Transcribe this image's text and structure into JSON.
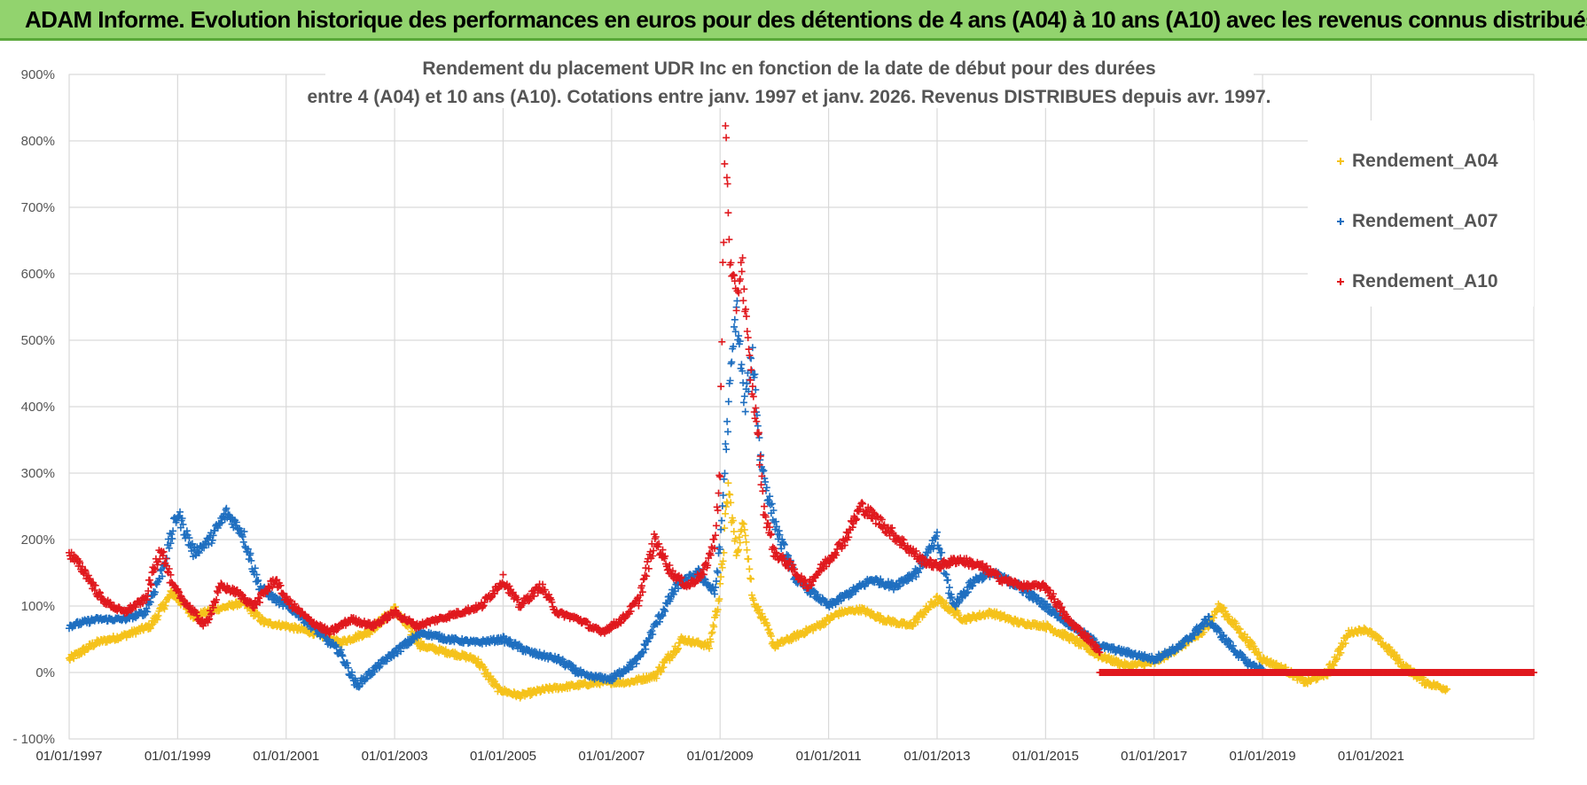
{
  "header": {
    "banner_title": "ADAM Informe. Evolution historique des performances en euros pour des détentions de 4 ans (A04) à 10 ans (A10) avec les revenus connus distribués"
  },
  "chart_data": {
    "type": "scatter",
    "title_line1": "Rendement du placement UDR Inc en fonction de la date de début pour des durées",
    "title_line2": "entre 4 (A04) et 10 ans (A10).  Cotations entre janv. 1997 et janv. 2026. Revenus DISTRIBUES depuis avr. 1997.",
    "xlabel": "",
    "ylabel": "",
    "x_range": [
      1997.0,
      2024.0
    ],
    "y_range": [
      -100,
      900
    ],
    "y_ticks": [
      -100,
      0,
      100,
      200,
      300,
      400,
      500,
      600,
      700,
      800,
      900
    ],
    "y_tick_labels": [
      "- 100%",
      "0%",
      "100%",
      "200%",
      "300%",
      "400%",
      "500%",
      "600%",
      "700%",
      "800%",
      "900%"
    ],
    "x_ticks": [
      1997,
      1999,
      2001,
      2003,
      2005,
      2007,
      2009,
      2011,
      2013,
      2015,
      2017,
      2019,
      2021
    ],
    "x_tick_labels": [
      "01/01/1997",
      "01/01/1999",
      "01/01/2001",
      "01/01/2003",
      "01/01/2005",
      "01/01/2007",
      "01/01/2009",
      "01/01/2011",
      "01/01/2013",
      "01/01/2015",
      "01/01/2017",
      "01/01/2019",
      "01/01/2021"
    ],
    "grid": true,
    "legend_position": "top-right",
    "marker": "+",
    "series": [
      {
        "name": "Rendement_A04",
        "color": "#f5c21b",
        "x": [
          1997.0,
          1997.5,
          1998.0,
          1998.5,
          1998.9,
          1999.3,
          1999.7,
          2000.2,
          2000.6,
          2001.0,
          2001.5,
          2002.0,
          2002.5,
          2003.0,
          2003.5,
          2004.0,
          2004.5,
          2004.9,
          2005.3,
          2005.8,
          2006.3,
          2006.8,
          2007.3,
          2007.8,
          2008.3,
          2008.8,
          2009.0,
          2009.15,
          2009.3,
          2009.45,
          2009.6,
          2009.8,
          2010.0,
          2010.4,
          2010.8,
          2011.2,
          2011.6,
          2012.0,
          2012.5,
          2013.0,
          2013.5,
          2014.0,
          2014.5,
          2015.0,
          2015.5,
          2016.0,
          2016.5,
          2017.0,
          2017.5,
          2017.9,
          2018.2,
          2018.6,
          2019.0,
          2019.4,
          2019.8,
          2020.2,
          2020.6,
          2020.9,
          2021.2,
          2021.6,
          2022.0,
          2022.4
        ],
        "y": [
          20,
          45,
          55,
          70,
          120,
          85,
          95,
          105,
          75,
          70,
          60,
          45,
          60,
          95,
          40,
          30,
          20,
          -25,
          -35,
          -25,
          -20,
          -15,
          -15,
          -5,
          50,
          40,
          120,
          280,
          180,
          230,
          110,
          80,
          40,
          55,
          70,
          90,
          95,
          80,
          70,
          110,
          80,
          90,
          75,
          70,
          50,
          25,
          10,
          15,
          40,
          60,
          100,
          60,
          20,
          5,
          -15,
          0,
          60,
          65,
          45,
          10,
          -15,
          -25
        ]
      },
      {
        "name": "Rendement_A07",
        "color": "#1f6fc0",
        "x": [
          1997.0,
          1997.5,
          1998.0,
          1998.4,
          1998.7,
          1999.0,
          1999.3,
          1999.6,
          1999.9,
          2000.2,
          2000.5,
          2000.8,
          2001.2,
          2001.6,
          2002.0,
          2002.3,
          2002.7,
          2003.0,
          2003.5,
          2004.0,
          2004.5,
          2005.0,
          2005.5,
          2006.0,
          2006.5,
          2007.0,
          2007.5,
          2007.8,
          2008.2,
          2008.6,
          2008.9,
          2009.0,
          2009.1,
          2009.2,
          2009.3,
          2009.45,
          2009.6,
          2009.75,
          2009.9,
          2010.1,
          2010.4,
          2010.7,
          2011.0,
          2011.4,
          2011.8,
          2012.2,
          2012.6,
          2013.0,
          2013.3,
          2013.7,
          2014.0,
          2014.5,
          2015.0,
          2015.5,
          2016.0,
          2016.5,
          2017.0,
          2017.5,
          2018.0,
          2018.3,
          2018.7,
          2019.0
        ],
        "y": [
          70,
          80,
          80,
          90,
          150,
          240,
          180,
          200,
          240,
          210,
          130,
          110,
          90,
          60,
          30,
          -20,
          10,
          30,
          60,
          50,
          45,
          50,
          30,
          20,
          -5,
          -10,
          20,
          70,
          130,
          150,
          120,
          190,
          330,
          450,
          550,
          400,
          480,
          320,
          260,
          200,
          140,
          120,
          100,
          120,
          140,
          130,
          150,
          200,
          100,
          140,
          150,
          130,
          100,
          70,
          40,
          30,
          20,
          40,
          80,
          50,
          15,
          5
        ]
      },
      {
        "name": "Rendement_A10",
        "color": "#e0191e",
        "x": [
          1997.0,
          1997.3,
          1997.6,
          1998.0,
          1998.4,
          1998.7,
          1998.9,
          1999.2,
          1999.5,
          1999.8,
          2000.1,
          2000.4,
          2000.8,
          2001.0,
          2001.4,
          2001.8,
          2002.2,
          2002.6,
          2003.0,
          2003.4,
          2003.8,
          2004.2,
          2004.6,
          2005.0,
          2005.3,
          2005.7,
          2006.0,
          2006.4,
          2006.8,
          2007.2,
          2007.5,
          2007.8,
          2008.1,
          2008.4,
          2008.7,
          2008.9,
          2009.0,
          2009.05,
          2009.1,
          2009.15,
          2009.2,
          2009.3,
          2009.4,
          2009.5,
          2009.6,
          2009.7,
          2009.8,
          2010.0,
          2010.3,
          2010.6,
          2011.0,
          2011.3,
          2011.6,
          2011.9,
          2012.3,
          2012.7,
          2013.0,
          2013.4,
          2013.8,
          2014.2,
          2014.6,
          2015.0,
          2015.4,
          2015.8,
          2016.0
        ],
        "y": [
          180,
          150,
          110,
          90,
          110,
          190,
          130,
          100,
          70,
          130,
          120,
          100,
          140,
          110,
          80,
          60,
          80,
          70,
          90,
          70,
          80,
          90,
          100,
          140,
          100,
          130,
          90,
          80,
          60,
          80,
          110,
          200,
          150,
          130,
          150,
          200,
          300,
          600,
          820,
          700,
          600,
          560,
          620,
          500,
          420,
          360,
          250,
          180,
          160,
          130,
          170,
          200,
          250,
          230,
          200,
          170,
          160,
          170,
          160,
          140,
          130,
          130,
          80,
          50,
          30
        ],
        "zero_line_from": 2016.0,
        "zero_line_to": 2024.0
      }
    ]
  }
}
